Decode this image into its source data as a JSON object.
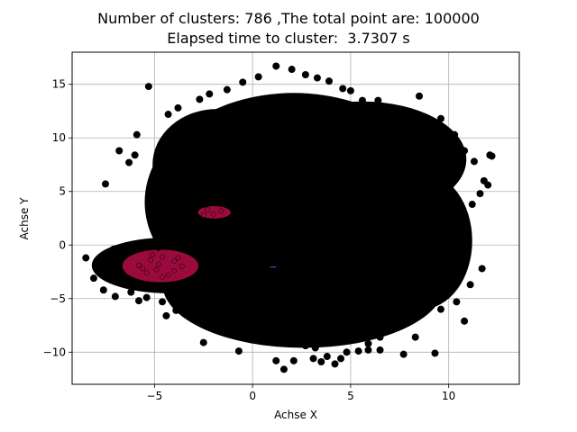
{
  "chart_data": {
    "type": "scatter",
    "title": [
      "Number of clusters: 786 ,The total point are: 100000",
      "Elapsed time to cluster:  3.7307 s"
    ],
    "xlabel": "Achse X",
    "ylabel": "Achse Y",
    "xlim": [
      -9.2,
      13.6
    ],
    "ylim": [
      -13,
      18
    ],
    "xticks": [
      -5,
      0,
      5,
      10
    ],
    "yticks": [
      -10,
      -5,
      0,
      5,
      10,
      15
    ],
    "grid": true,
    "colors": {
      "dominant": "#000000",
      "cluster": "#9b0a3c",
      "frame": "#000000",
      "grid": "#b0b0b0",
      "minor": "#3a55c8"
    },
    "series": [
      {
        "color": "#000000",
        "x": [
          -6.8,
          -6.0,
          -7.5,
          -5.9,
          -6.3,
          -4.3,
          -3.8,
          -5.3,
          -4.4,
          -3.9,
          -2.7,
          -2.2,
          -1.3,
          -0.5,
          0.3,
          1.2,
          2.0,
          2.7,
          3.3,
          3.9,
          4.6,
          5.0,
          5.6,
          6.4,
          7.0,
          7.8,
          8.1,
          8.5,
          9.1,
          9.6,
          10.3,
          10.8,
          11.3,
          11.8,
          12.1,
          12.2,
          12.0,
          11.6,
          11.2,
          10.8,
          10.3,
          9.8,
          9.4,
          9.0,
          8.6,
          8.1,
          7.6,
          7.0,
          6.5,
          5.9,
          5.4,
          4.8,
          4.2,
          3.8,
          3.2,
          2.7,
          2.1,
          1.6,
          1.1,
          0.6,
          0.0,
          -0.6,
          -1.3,
          -1.9,
          -2.6,
          -3.2,
          -3.9,
          -4.6,
          -5.4,
          -6.2,
          -7.0,
          -7.6,
          -8.1,
          -8.5,
          -7.1,
          -5.5,
          -4.8,
          -3.9,
          -3.3,
          -2.7,
          -2.3,
          0.3,
          3.1,
          4.5,
          5.9,
          7.7,
          9.3,
          10.8,
          11.7,
          11.1,
          10.4,
          9.6,
          8.3,
          6.5,
          3.5,
          1.2,
          -0.7,
          -2.5,
          -4.4,
          -5.8
        ],
        "y": [
          8.8,
          8.4,
          5.7,
          10.3,
          7.7,
          12.2,
          12.8,
          14.8,
          9.0,
          8.3,
          13.6,
          14.1,
          14.5,
          15.2,
          15.7,
          16.7,
          16.4,
          15.9,
          15.6,
          15.3,
          14.6,
          14.4,
          13.5,
          13.5,
          12.7,
          12.0,
          12.3,
          13.9,
          11.4,
          11.8,
          10.3,
          8.8,
          7.8,
          6.0,
          8.4,
          8.3,
          5.6,
          4.8,
          3.8,
          2.8,
          1.4,
          0.5,
          -0.9,
          -2.4,
          -4.1,
          -5.2,
          -6.3,
          -7.9,
          -8.6,
          -9.2,
          -9.9,
          -10.0,
          -11.1,
          -10.4,
          -9.6,
          -9.4,
          -10.8,
          -11.6,
          -9.0,
          -8.7,
          -8.3,
          -8.6,
          -7.7,
          -7.5,
          -7.3,
          -6.4,
          -6.1,
          -5.3,
          -4.9,
          -4.4,
          -4.8,
          -4.2,
          -3.1,
          -1.2,
          -0.4,
          0.2,
          -0.2,
          0.1,
          1.7,
          2.2,
          1.2,
          -8.9,
          -10.6,
          -10.6,
          -9.8,
          -10.2,
          -10.1,
          -7.1,
          -2.2,
          -3.7,
          -5.3,
          -6.0,
          -8.6,
          -9.8,
          -10.9,
          -10.8,
          -9.9,
          -9.1,
          -6.6,
          -5.2
        ]
      },
      {
        "color": "#9b0a3c",
        "x": [
          -5.8,
          -5.2,
          -4.6,
          -4.0,
          -3.6,
          -5.4,
          -4.9,
          -4.3,
          -5.1,
          -4.6,
          -4.0,
          -5.6,
          -3.8,
          -4.8,
          -2.3,
          -2.0,
          -1.6,
          -2.5
        ],
        "y": [
          -1.9,
          -1.4,
          -1.1,
          -1.5,
          -2.0,
          -2.6,
          -2.3,
          -2.8,
          -0.9,
          -3.0,
          -2.4,
          -2.2,
          -1.2,
          -1.8,
          3.3,
          2.9,
          3.2,
          2.8
        ]
      }
    ]
  }
}
